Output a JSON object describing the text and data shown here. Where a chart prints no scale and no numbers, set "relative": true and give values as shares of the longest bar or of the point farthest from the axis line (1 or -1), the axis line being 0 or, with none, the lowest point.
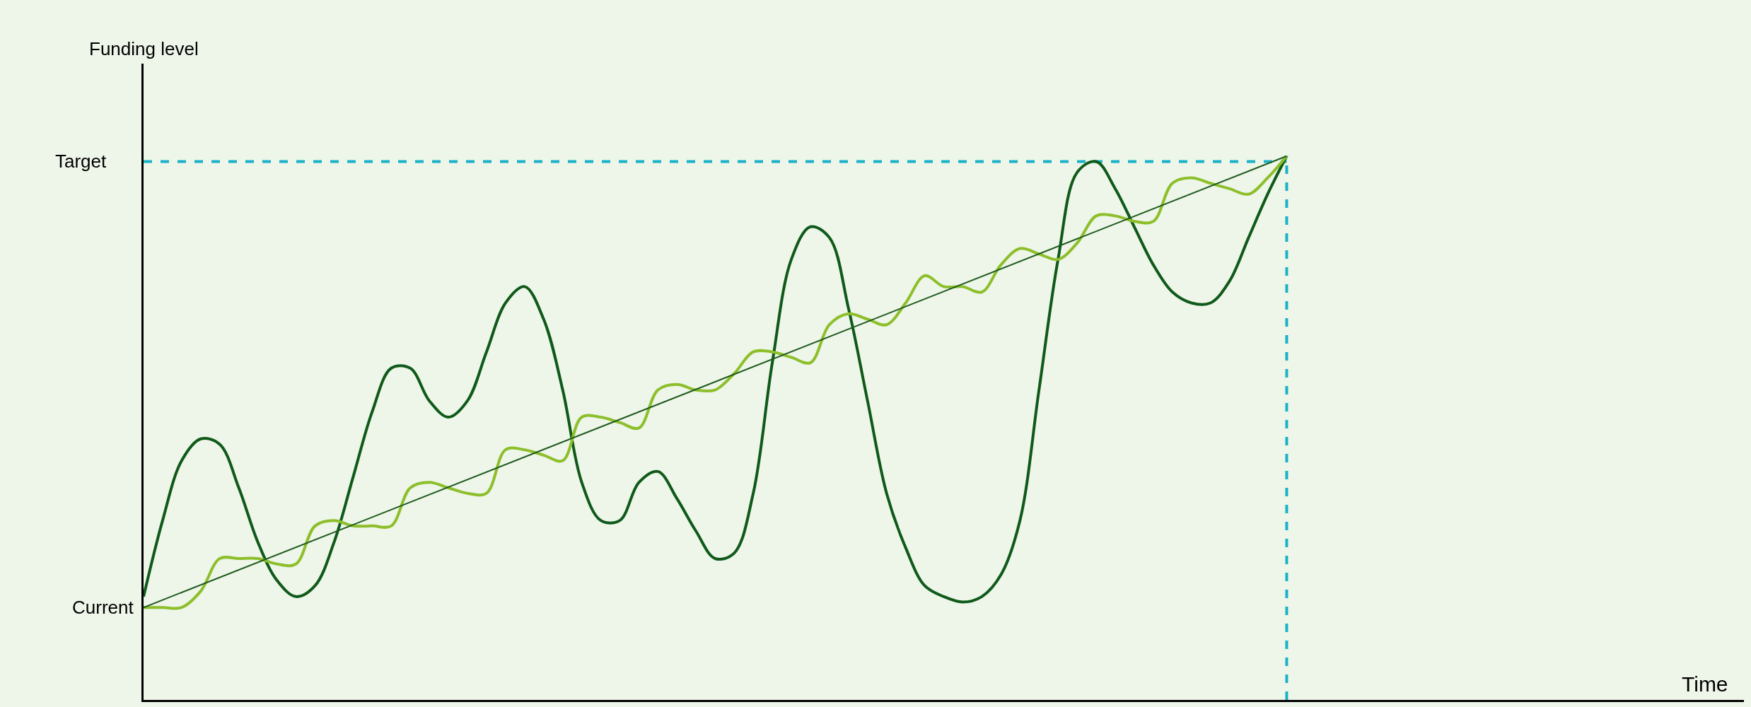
{
  "chart_data": {
    "type": "line",
    "relative": true,
    "categories": [
      null,
      null,
      null,
      null,
      null,
      null,
      null,
      null,
      null,
      null,
      null,
      null,
      null,
      null,
      null,
      null,
      null,
      null,
      null,
      null,
      null,
      null,
      null,
      null,
      null,
      null,
      null,
      null,
      null,
      null,
      null,
      null,
      null,
      null,
      null,
      null,
      null,
      null,
      null,
      null,
      null,
      null,
      null,
      null,
      null,
      null,
      null,
      null,
      null,
      null,
      null,
      null,
      null,
      null,
      null,
      null,
      null,
      null,
      null,
      null,
      null
    ],
    "series": [
      {
        "color": "#0f5a1a",
        "values": [
          0.19,
          0.33,
          0.44,
          0.48,
          0.47,
          0.39,
          0.29,
          0.22,
          0.19,
          0.21,
          0.29,
          0.41,
          0.53,
          0.61,
          0.61,
          0.55,
          0.52,
          0.55,
          0.64,
          0.73,
          0.76,
          0.7,
          0.57,
          0.4,
          0.33,
          0.33,
          0.4,
          0.42,
          0.37,
          0.31,
          0.26,
          0.27,
          0.38,
          0.62,
          0.81,
          0.87,
          0.85,
          0.72,
          0.55,
          0.38,
          0.28,
          0.21,
          0.19,
          0.18,
          0.19,
          0.23,
          0.33,
          0.57,
          0.81,
          0.97,
          0.99,
          0.94,
          0.87,
          0.8,
          0.75,
          0.73,
          0.73,
          0.77,
          0.85,
          0.93,
          1.0
        ]
      },
      {
        "color": "#8cbf2a",
        "values": [
          0.17,
          0.17,
          0.17,
          0.2,
          0.26,
          0.26,
          0.26,
          0.25,
          0.25,
          0.32,
          0.33,
          0.32,
          0.32,
          0.32,
          0.39,
          0.4,
          0.39,
          0.38,
          0.38,
          0.46,
          0.46,
          0.45,
          0.44,
          0.52,
          0.52,
          0.51,
          0.5,
          0.57,
          0.58,
          0.57,
          0.57,
          0.6,
          0.64,
          0.64,
          0.63,
          0.62,
          0.69,
          0.71,
          0.7,
          0.69,
          0.73,
          0.78,
          0.76,
          0.76,
          0.75,
          0.8,
          0.83,
          0.82,
          0.81,
          0.84,
          0.89,
          0.89,
          0.88,
          0.88,
          0.95,
          0.96,
          0.95,
          0.94,
          0.93,
          0.96,
          1.0
        ]
      },
      {
        "color": "#1e5a1e",
        "values": [
          0.17,
          null,
          null,
          null,
          null,
          null,
          null,
          null,
          null,
          null,
          null,
          null,
          null,
          null,
          null,
          null,
          null,
          null,
          null,
          null,
          null,
          null,
          null,
          null,
          null,
          null,
          null,
          null,
          null,
          null,
          null,
          null,
          null,
          null,
          null,
          null,
          null,
          null,
          null,
          null,
          null,
          null,
          null,
          null,
          null,
          null,
          null,
          null,
          null,
          null,
          null,
          null,
          null,
          null,
          null,
          null,
          null,
          null,
          null,
          null,
          1.0
        ]
      }
    ],
    "ref_lines": [
      {
        "axis": "y",
        "value": 0.99,
        "label": "Target",
        "color": "#1ab2c8",
        "line_style": "dashed"
      }
    ],
    "annotations": [
      "Current",
      "Funding level",
      "Time"
    ],
    "grid": false,
    "marker": "none"
  }
}
